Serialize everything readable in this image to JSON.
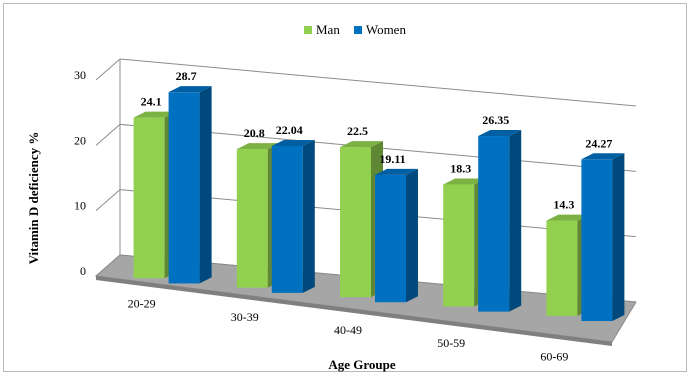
{
  "chart_data": {
    "type": "bar",
    "style": "3d-clustered-column",
    "categories": [
      "20-29",
      "30-39",
      "40-49",
      "50-59",
      "60-69"
    ],
    "series": [
      {
        "name": "Man",
        "color": "#92d050",
        "values": [
          24.1,
          20.8,
          22.5,
          18.3,
          14.3
        ],
        "labels": [
          "24.1",
          "20.8",
          "22.5",
          "18.3",
          "14.3"
        ]
      },
      {
        "name": "Women",
        "color": "#0070c0",
        "values": [
          28.7,
          22.04,
          19.11,
          26.35,
          24.27
        ],
        "labels": [
          "28.7",
          "22.04",
          "19.11",
          "26.35",
          "24.27"
        ]
      }
    ],
    "title": "",
    "xlabel": "Age Groupe",
    "ylabel": "Vitamin D deficiency  %",
    "ylim": [
      0,
      30
    ],
    "yticks": [
      0,
      10,
      20,
      30
    ],
    "grid": true,
    "legend": "top-center"
  }
}
